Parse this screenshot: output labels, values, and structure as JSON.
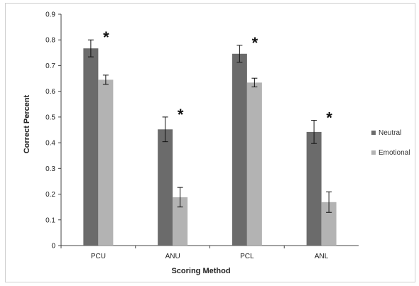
{
  "chart_data": {
    "type": "bar",
    "categories": [
      "PCU",
      "ANU",
      "PCL",
      "ANL"
    ],
    "series": [
      {
        "name": "Neutral",
        "color": "#6b6b6b",
        "values": [
          0.767,
          0.452,
          0.746,
          0.442
        ],
        "errors": [
          0.033,
          0.048,
          0.033,
          0.045
        ]
      },
      {
        "name": "Emotional",
        "color": "#b3b3b3",
        "values": [
          0.645,
          0.188,
          0.634,
          0.169
        ],
        "errors": [
          0.018,
          0.038,
          0.017,
          0.04
        ]
      }
    ],
    "significance": [
      "*",
      "*",
      "*",
      "*"
    ],
    "xlabel": "Scoring Method",
    "ylabel": "Correct Percent",
    "ylim": [
      0,
      0.9
    ],
    "yticks": [
      "0",
      "0.1",
      "0.2",
      "0.3",
      "0.4",
      "0.5",
      "0.6",
      "0.7",
      "0.8",
      "0.9"
    ],
    "grid": false,
    "legend_position": "right"
  }
}
